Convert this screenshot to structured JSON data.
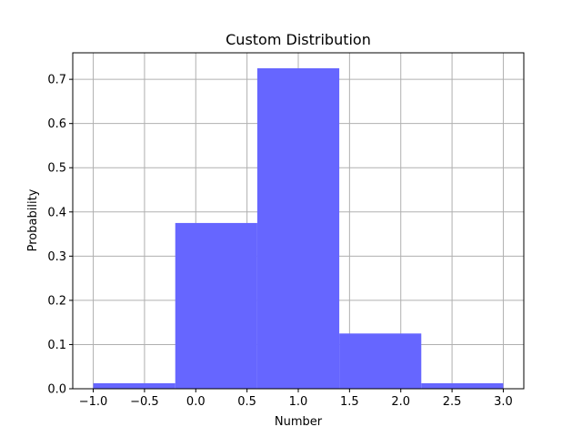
{
  "chart_data": {
    "type": "bar",
    "title": "Custom Distribution",
    "xlabel": "Number",
    "ylabel": "Probability",
    "bins": [
      {
        "left": -1.0,
        "right": -0.2,
        "value": 0.0125
      },
      {
        "left": -0.2,
        "right": 0.6,
        "value": 0.375
      },
      {
        "left": 0.6,
        "right": 1.4,
        "value": 0.725
      },
      {
        "left": 1.4,
        "right": 2.2,
        "value": 0.125
      },
      {
        "left": 2.2,
        "right": 3.0,
        "value": 0.0125
      }
    ],
    "xlim": [
      -1.2,
      3.2
    ],
    "ylim": [
      0,
      0.76
    ],
    "xticks": [
      -1.0,
      -0.5,
      0.0,
      0.5,
      1.0,
      1.5,
      2.0,
      2.5,
      3.0
    ],
    "xtick_labels": [
      "−1.0",
      "−0.5",
      "0.0",
      "0.5",
      "1.0",
      "1.5",
      "2.0",
      "2.5",
      "3.0"
    ],
    "yticks": [
      0.0,
      0.1,
      0.2,
      0.3,
      0.4,
      0.5,
      0.6,
      0.7
    ],
    "ytick_labels": [
      "0.0",
      "0.1",
      "0.2",
      "0.3",
      "0.4",
      "0.5",
      "0.6",
      "0.7"
    ],
    "grid": true,
    "bar_color": "#6666ff",
    "grid_color": "#b0b0b0",
    "legend": "none"
  }
}
